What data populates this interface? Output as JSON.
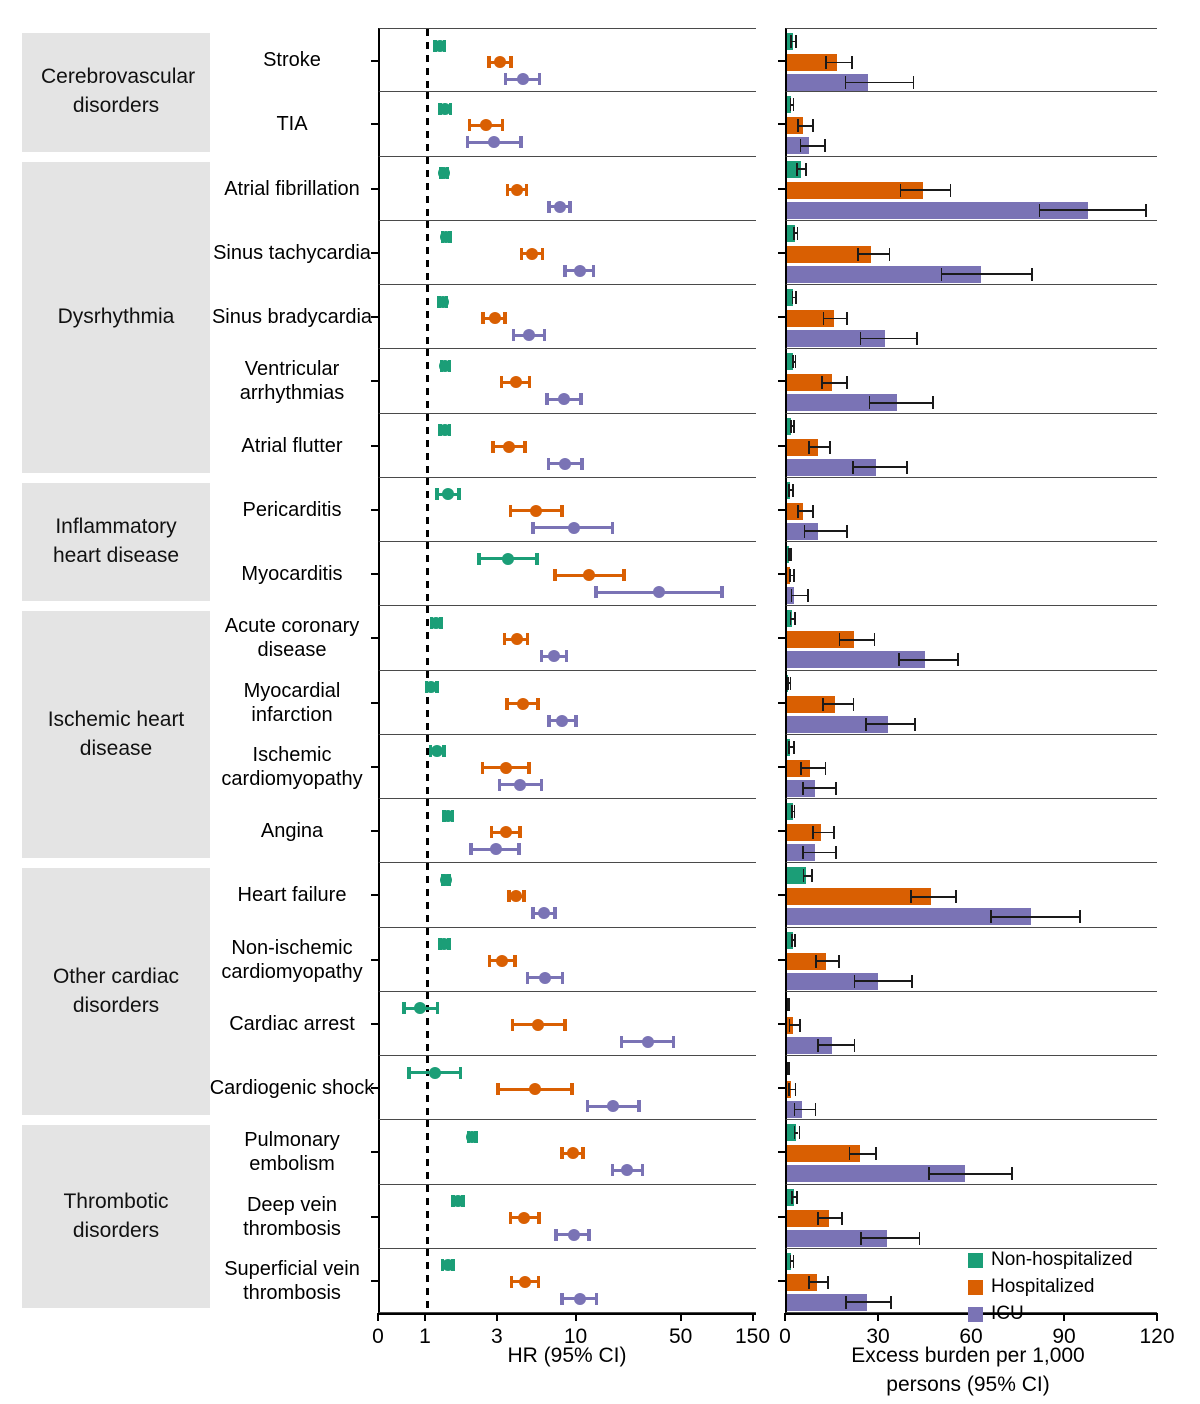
{
  "colors": {
    "non_hospitalized": "#1b9e77",
    "hospitalized": "#d95f02",
    "icu": "#7a73b5",
    "category_box": "#e4e4e4"
  },
  "legend": {
    "items": [
      {
        "key": "non_hospitalized",
        "label": "Non-hospitalized"
      },
      {
        "key": "hospitalized",
        "label": "Hospitalized"
      },
      {
        "key": "icu",
        "label": "ICU"
      }
    ]
  },
  "categories": [
    {
      "label": "Cerebrovascular disorders",
      "start_row": 0,
      "end_row": 1
    },
    {
      "label": "Dysrhythmia",
      "start_row": 2,
      "end_row": 6
    },
    {
      "label": "Inflammatory heart disease",
      "start_row": 7,
      "end_row": 8
    },
    {
      "label": "Ischemic heart disease",
      "start_row": 9,
      "end_row": 12
    },
    {
      "label": "Other cardiac disorders",
      "start_row": 13,
      "end_row": 16
    },
    {
      "label": "Thrombotic disorders",
      "start_row": 17,
      "end_row": 19
    }
  ],
  "chart_data": [
    {
      "type": "scatter",
      "name": "hazard_ratio_forest",
      "xlabel": "HR (95% CI)",
      "xscale": "log",
      "x_ticks": [
        0,
        1,
        3,
        10,
        50,
        150
      ],
      "reference_line": 1,
      "value_format": [
        "mid",
        "lo",
        "hi"
      ],
      "categories": [
        "Stroke",
        "TIA",
        "Atrial fibrillation",
        "Sinus tachycardia",
        "Sinus bradycardia",
        "Ventricular arrhythmias",
        "Atrial flutter",
        "Pericarditis",
        "Myocarditis",
        "Acute coronary disease",
        "Myocardial infarction",
        "Ischemic cardiomyopathy",
        "Angina",
        "Heart failure",
        "Non-ischemic cardiomyopathy",
        "Cardiac arrest",
        "Cardiogenic shock",
        "Pulmonary embolism",
        "Deep vein thrombosis",
        "Superficial vein thrombosis"
      ],
      "series": [
        {
          "name": "Non-hospitalized",
          "key": "non_hospitalized",
          "values": [
            [
              1.22,
              1.13,
              1.31
            ],
            [
              1.32,
              1.22,
              1.43
            ],
            [
              1.3,
              1.24,
              1.37
            ],
            [
              1.34,
              1.27,
              1.42
            ],
            [
              1.27,
              1.2,
              1.35
            ],
            [
              1.32,
              1.25,
              1.41
            ],
            [
              1.31,
              1.22,
              1.41
            ],
            [
              1.37,
              1.16,
              1.63
            ],
            [
              3.45,
              2.21,
              5.39
            ],
            [
              1.15,
              1.07,
              1.24
            ],
            [
              1.07,
              0.99,
              1.16
            ],
            [
              1.17,
              1.05,
              1.3
            ],
            [
              1.38,
              1.3,
              1.47
            ],
            [
              1.34,
              1.28,
              1.4
            ],
            [
              1.3,
              1.22,
              1.4
            ],
            [
              0.9,
              0.7,
              1.17
            ],
            [
              1.13,
              0.76,
              1.67
            ],
            [
              2.0,
              1.88,
              2.12
            ],
            [
              1.61,
              1.49,
              1.73
            ],
            [
              1.37,
              1.27,
              1.49
            ]
          ]
        },
        {
          "name": "Hospitalized",
          "key": "hospitalized",
          "values": [
            [
              3.05,
              2.58,
              3.61
            ],
            [
              2.46,
              1.92,
              3.16
            ],
            [
              3.94,
              3.42,
              4.57
            ],
            [
              4.99,
              4.25,
              5.84
            ],
            [
              2.81,
              2.36,
              3.3
            ],
            [
              3.88,
              3.13,
              4.8
            ],
            [
              3.5,
              2.74,
              4.48
            ],
            [
              5.27,
              3.57,
              7.9
            ],
            [
              12.0,
              7.1,
              20.3
            ],
            [
              3.94,
              3.26,
              4.66
            ],
            [
              4.32,
              3.4,
              5.46
            ],
            [
              3.33,
              2.33,
              4.76
            ],
            [
              3.33,
              2.68,
              4.13
            ],
            [
              3.92,
              3.5,
              4.42
            ],
            [
              3.16,
              2.6,
              3.85
            ],
            [
              5.47,
              3.68,
              8.26
            ],
            [
              5.23,
              2.97,
              9.2
            ],
            [
              9.3,
              7.9,
              10.9
            ],
            [
              4.42,
              3.59,
              5.55
            ],
            [
              4.48,
              3.65,
              5.5
            ]
          ]
        },
        {
          "name": "ICU",
          "key": "icu",
          "values": [
            [
              4.32,
              3.33,
              5.6
            ],
            [
              2.8,
              1.85,
              4.22
            ],
            [
              7.62,
              6.47,
              8.93
            ],
            [
              10.4,
              8.26,
              12.8
            ],
            [
              4.76,
              3.74,
              6.03
            ],
            [
              8.14,
              6.25,
              10.5
            ],
            [
              8.3,
              6.4,
              10.7
            ],
            [
              9.45,
              5.06,
              17.1
            ],
            [
              34.9,
              13.3,
              91.2
            ],
            [
              7.0,
              5.77,
              8.44
            ],
            [
              7.93,
              6.47,
              9.75
            ],
            [
              4.17,
              3.03,
              5.77
            ],
            [
              2.87,
              1.96,
              4.08
            ],
            [
              6.0,
              5.06,
              7.1
            ],
            [
              6.1,
              4.64,
              7.93
            ],
            [
              29.3,
              19.5,
              43.4
            ],
            [
              17.2,
              11.6,
              25.5
            ],
            [
              21.4,
              17.1,
              26.9
            ],
            [
              9.4,
              7.2,
              11.9
            ],
            [
              10.4,
              7.9,
              13.4
            ]
          ]
        }
      ]
    },
    {
      "type": "bar",
      "name": "excess_burden",
      "xlabel": "Excess burden per 1,000 persons (95% CI)",
      "xlabel_line1": "Excess burden per 1,000",
      "xlabel_line2": "persons (95% CI)",
      "x_ticks": [
        0,
        30,
        60,
        90,
        120
      ],
      "xlim": [
        0,
        120
      ],
      "value_format": [
        "mid",
        "lo",
        "hi"
      ],
      "categories": [
        "Stroke",
        "TIA",
        "Atrial fibrillation",
        "Sinus tachycardia",
        "Sinus bradycardia",
        "Ventricular arrhythmias",
        "Atrial flutter",
        "Pericarditis",
        "Myocarditis",
        "Acute coronary disease",
        "Myocardial infarction",
        "Ischemic cardiomyopathy",
        "Angina",
        "Heart failure",
        "Non-ischemic cardiomyopathy",
        "Cardiac arrest",
        "Cardiogenic shock",
        "Pulmonary embolism",
        "Deep vein thrombosis",
        "Superficial vein thrombosis"
      ],
      "series": [
        {
          "name": "Non-hospitalized",
          "key": "non_hospitalized",
          "values": [
            [
              1.8,
              1.0,
              2.6
            ],
            [
              1.3,
              0.9,
              1.8
            ],
            [
              4.4,
              3.0,
              5.8
            ],
            [
              2.5,
              1.9,
              3.1
            ],
            [
              2.0,
              1.5,
              2.6
            ],
            [
              2.0,
              1.6,
              2.5
            ],
            [
              1.4,
              1.0,
              1.9
            ],
            [
              0.9,
              0.4,
              1.6
            ],
            [
              0.6,
              0.3,
              1.0
            ],
            [
              1.6,
              0.9,
              2.3
            ],
            [
              0.4,
              0.0,
              0.9
            ],
            [
              1.1,
              0.3,
              1.9
            ],
            [
              1.8,
              1.4,
              2.2
            ],
            [
              6.2,
              5.1,
              7.7
            ],
            [
              1.8,
              1.3,
              2.4
            ],
            [
              0.0,
              0.0,
              0.5
            ],
            [
              0.0,
              0.0,
              0.4
            ],
            [
              3.0,
              2.2,
              3.7
            ],
            [
              2.2,
              1.4,
              3.0
            ],
            [
              1.3,
              0.9,
              1.8
            ]
          ]
        },
        {
          "name": "Hospitalized",
          "key": "hospitalized",
          "values": [
            [
              16.1,
              12.4,
              20.6
            ],
            [
              5.3,
              3.3,
              8.1
            ],
            [
              43.9,
              36.4,
              52.5
            ],
            [
              27.2,
              22.6,
              32.8
            ],
            [
              15.1,
              11.5,
              19.1
            ],
            [
              14.5,
              11.1,
              19.0
            ],
            [
              10.0,
              6.8,
              13.6
            ],
            [
              5.1,
              3.2,
              8.1
            ],
            [
              1.1,
              0.6,
              1.9
            ],
            [
              21.7,
              16.7,
              28.0
            ],
            [
              15.6,
              11.3,
              21.2
            ],
            [
              7.5,
              4.3,
              12.2
            ],
            [
              11.1,
              8.1,
              14.8
            ],
            [
              46.5,
              39.8,
              54.3
            ],
            [
              12.7,
              9.1,
              16.5
            ],
            [
              1.8,
              0.5,
              4.0
            ],
            [
              1.3,
              0.3,
              2.5
            ],
            [
              23.6,
              19.9,
              28.5
            ],
            [
              13.4,
              9.7,
              17.5
            ],
            [
              9.7,
              6.8,
              12.9
            ]
          ]
        },
        {
          "name": "ICU",
          "key": "icu",
          "values": [
            [
              26.1,
              18.6,
              40.5
            ],
            [
              7.0,
              4.1,
              12.0
            ],
            [
              97.1,
              81.2,
              115.6
            ],
            [
              62.7,
              49.5,
              78.8
            ],
            [
              31.7,
              23.4,
              41.6
            ],
            [
              35.5,
              26.4,
              46.8
            ],
            [
              28.7,
              21.0,
              38.4
            ],
            [
              10.0,
              5.4,
              19.0
            ],
            [
              2.3,
              1.2,
              6.5
            ],
            [
              44.6,
              35.8,
              54.8
            ],
            [
              32.5,
              25.3,
              41.1
            ],
            [
              8.9,
              4.8,
              15.6
            ],
            [
              8.9,
              4.8,
              15.6
            ],
            [
              78.8,
              65.6,
              94.3
            ],
            [
              29.2,
              21.5,
              40.1
            ],
            [
              14.5,
              9.7,
              21.5
            ],
            [
              4.8,
              2.2,
              8.9
            ],
            [
              57.5,
              45.5,
              72.4
            ],
            [
              32.3,
              23.6,
              42.5
            ],
            [
              25.8,
              18.8,
              33.3
            ]
          ]
        }
      ]
    }
  ]
}
